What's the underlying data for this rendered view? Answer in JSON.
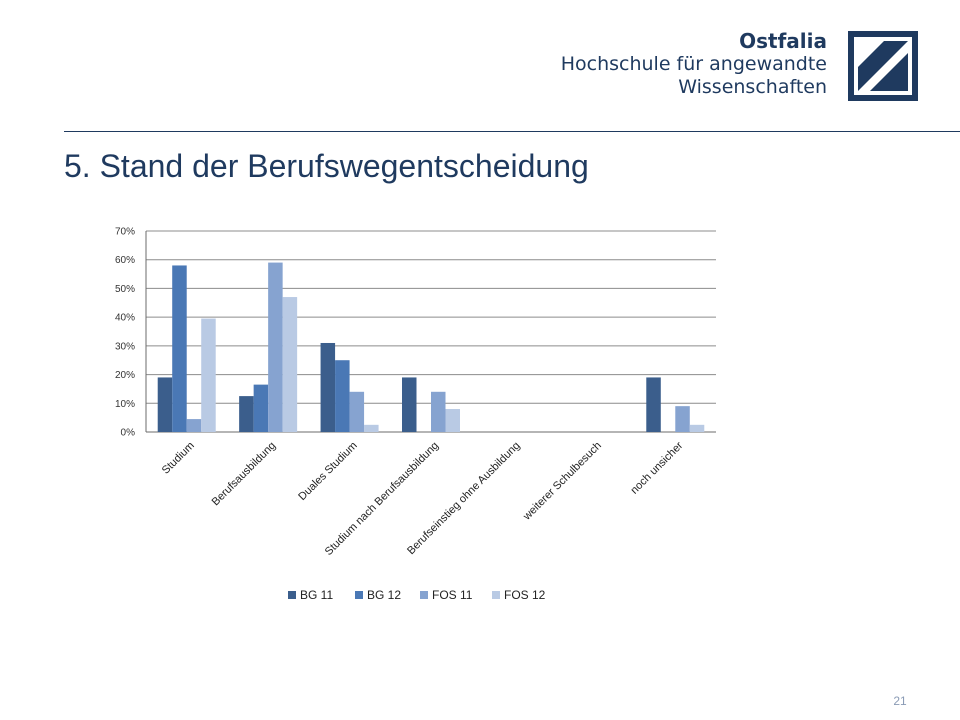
{
  "header": {
    "logo_name": "Ostfalia",
    "logo_line2": "Hochschule für angewandte",
    "logo_line3": "Wissenschaften"
  },
  "slide": {
    "title": "5. Stand der Berufswegentscheidung",
    "page_number": "21"
  },
  "colors": {
    "brand": "#1f3a5f",
    "BG 11": "#3b5e8c",
    "BG 12": "#4a78b5",
    "FOS 11": "#86a3d0",
    "FOS 12": "#b9cae4"
  },
  "chart_data": {
    "type": "bar",
    "title": "",
    "xlabel": "",
    "ylabel": "",
    "ylim": [
      0,
      0.7
    ],
    "yticks": [
      "0%",
      "10%",
      "20%",
      "30%",
      "40%",
      "50%",
      "60%",
      "70%"
    ],
    "grid": true,
    "legend": "bottom",
    "categories": [
      "Studium",
      "Berufsausbildung",
      "Duales Studium",
      "Studium nach Berufsausbildung",
      "Berufseinstieg ohne Ausbildung",
      "weiterer Schulbesuch",
      "noch unsicher"
    ],
    "series": [
      {
        "name": "BG 11",
        "values": [
          0.19,
          0.125,
          0.31,
          0.19,
          0,
          0,
          0.19
        ]
      },
      {
        "name": "BG 12",
        "values": [
          0.58,
          0.165,
          0.25,
          0,
          0,
          0,
          0
        ]
      },
      {
        "name": "FOS 11",
        "values": [
          0.045,
          0.59,
          0.14,
          0.14,
          0,
          0,
          0.09
        ]
      },
      {
        "name": "FOS 12",
        "values": [
          0.395,
          0.47,
          0.025,
          0.08,
          0,
          0,
          0.025
        ]
      }
    ]
  }
}
